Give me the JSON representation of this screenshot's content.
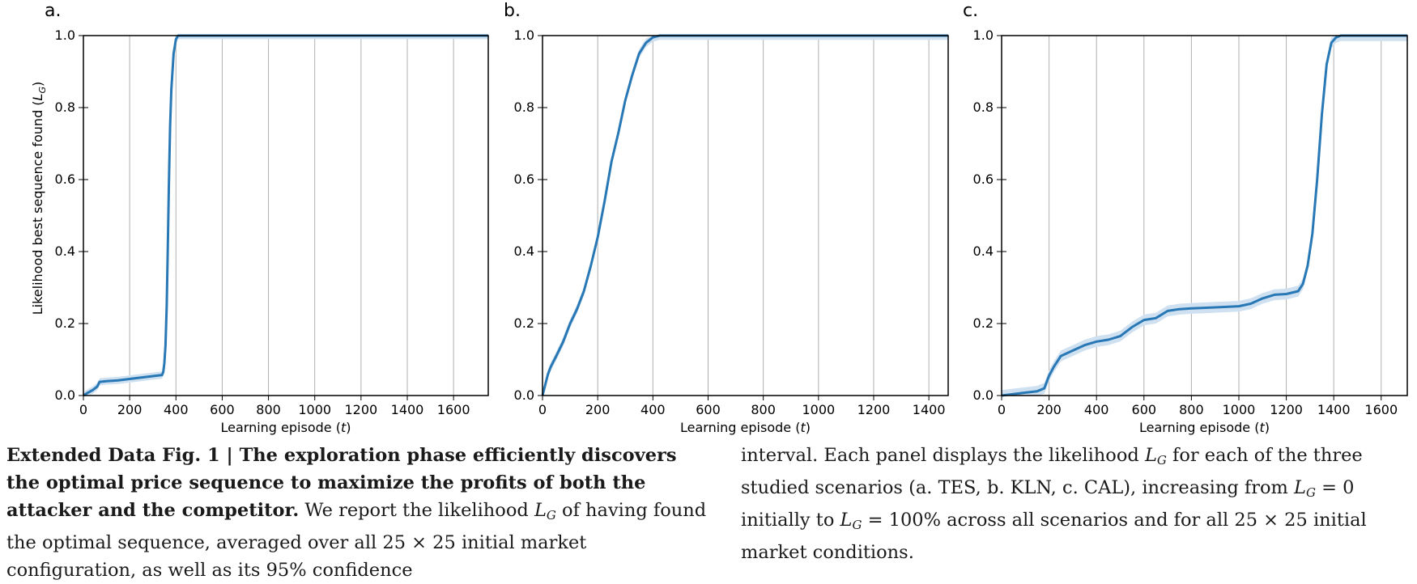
{
  "y_axis_label": "Likelihood best sequence found (",
  "y_axis_label_symbol": "L",
  "y_axis_label_sub": "G",
  "y_axis_label_close": ")",
  "x_axis_label": "Learning episode (",
  "x_axis_label_symbol": "t",
  "x_axis_label_close": ")",
  "colors": {
    "line": "#2878b5",
    "band": "#cfe0f1",
    "grid": "#b0b0b0"
  },
  "chart_data": [
    {
      "type": "line",
      "panel_label": "a.",
      "xlim": [
        0,
        1750
      ],
      "ylim": [
        0,
        1
      ],
      "x_ticks": [
        0,
        200,
        400,
        600,
        800,
        1000,
        1200,
        1400,
        1600
      ],
      "y_ticks": [
        0.0,
        0.2,
        0.4,
        0.6,
        0.8,
        1.0
      ],
      "grid": "vertical",
      "series": [
        {
          "x": [
            0,
            20,
            40,
            60,
            70,
            100,
            150,
            200,
            250,
            300,
            340,
            345,
            350,
            355,
            360,
            365,
            370,
            375,
            380,
            390,
            400,
            410,
            420,
            1750
          ],
          "y": [
            0.0,
            0.008,
            0.015,
            0.025,
            0.038,
            0.04,
            0.042,
            0.046,
            0.05,
            0.054,
            0.057,
            0.065,
            0.09,
            0.14,
            0.25,
            0.42,
            0.6,
            0.75,
            0.85,
            0.95,
            0.99,
            1.0,
            1.0,
            1.0
          ],
          "ci_half_width": 0.01
        }
      ]
    },
    {
      "type": "line",
      "panel_label": "b.",
      "xlim": [
        0,
        1470
      ],
      "ylim": [
        0,
        1
      ],
      "x_ticks": [
        0,
        200,
        400,
        600,
        800,
        1000,
        1200,
        1400
      ],
      "y_ticks": [
        0.0,
        0.2,
        0.4,
        0.6,
        0.8,
        1.0
      ],
      "grid": "vertical",
      "series": [
        {
          "x": [
            0,
            10,
            20,
            30,
            50,
            75,
            100,
            125,
            150,
            175,
            200,
            225,
            250,
            275,
            300,
            325,
            350,
            375,
            400,
            425,
            450,
            1470
          ],
          "y": [
            0.0,
            0.03,
            0.06,
            0.08,
            0.11,
            0.15,
            0.2,
            0.24,
            0.29,
            0.36,
            0.44,
            0.54,
            0.65,
            0.73,
            0.82,
            0.89,
            0.95,
            0.98,
            0.995,
            1.0,
            1.0,
            1.0
          ],
          "ci_half_width": 0.012
        }
      ]
    },
    {
      "type": "line",
      "panel_label": "c.",
      "xlim": [
        0,
        1710
      ],
      "ylim": [
        0,
        1
      ],
      "x_ticks": [
        0,
        200,
        400,
        600,
        800,
        1000,
        1200,
        1400,
        1600
      ],
      "y_ticks": [
        0.0,
        0.2,
        0.4,
        0.6,
        0.8,
        1.0
      ],
      "grid": "vertical",
      "series": [
        {
          "x": [
            0,
            50,
            100,
            150,
            180,
            200,
            220,
            250,
            300,
            350,
            400,
            450,
            500,
            550,
            600,
            650,
            700,
            750,
            800,
            900,
            1000,
            1050,
            1100,
            1150,
            1200,
            1250,
            1270,
            1290,
            1310,
            1330,
            1350,
            1370,
            1390,
            1410,
            1430,
            1450,
            1710
          ],
          "y": [
            0.0,
            0.004,
            0.008,
            0.012,
            0.02,
            0.055,
            0.08,
            0.11,
            0.125,
            0.14,
            0.15,
            0.155,
            0.165,
            0.19,
            0.21,
            0.215,
            0.235,
            0.24,
            0.242,
            0.245,
            0.248,
            0.255,
            0.27,
            0.28,
            0.282,
            0.29,
            0.31,
            0.36,
            0.45,
            0.6,
            0.78,
            0.92,
            0.98,
            0.995,
            1.0,
            1.0,
            1.0
          ],
          "ci_half_width": 0.015
        }
      ]
    }
  ],
  "caption": {
    "bold_lead": "Extended Data Fig. 1 | The exploration phase efficiently discovers the optimal price sequence to maximize the profits of both the attacker and the competitor.",
    "left_rest_1": " We report the likelihood ",
    "left_rest_2": " of having found the optimal sequence, averaged over all 25 × 25 initial market configuration, as well as its 95% confidence",
    "right_1": "interval. Each panel displays the likelihood ",
    "right_2": " for each of the three studied scenarios (a. TES, b. KLN, c. CAL), increasing from ",
    "right_3": " = 0 initially to ",
    "right_4": " = 100% across all scenarios and for all 25 × 25 initial market conditions.",
    "symbol": "L",
    "symbol_sub": "G"
  }
}
